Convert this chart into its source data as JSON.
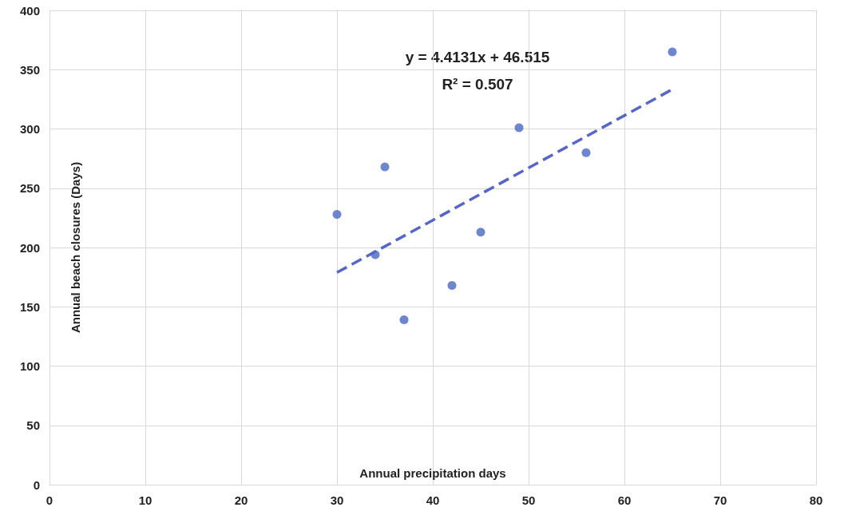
{
  "chart_data": {
    "type": "scatter",
    "xlabel": "Annual precipitation days",
    "ylabel": "Annual beach closures (Days)",
    "annotations": [
      "y = 4.4131x + 46.515",
      "R² = 0.507"
    ],
    "xlim": [
      0,
      80
    ],
    "xticks": [
      0,
      10,
      20,
      30,
      40,
      50,
      60,
      70,
      80
    ],
    "ylim": [
      0,
      400
    ],
    "yticks": [
      0,
      50,
      100,
      150,
      200,
      250,
      300,
      350,
      400
    ],
    "grid": true,
    "marker": "circle",
    "series": [
      {
        "color": "#4a66c4",
        "x": [
          30,
          34,
          35,
          37,
          42,
          45,
          49,
          56,
          65
        ],
        "values": [
          228,
          194,
          268,
          139,
          168,
          213,
          301,
          280,
          365
        ]
      },
      {
        "type": "line",
        "color": "#5566c8",
        "line_style": "dashed",
        "marker": "none",
        "x": [
          30,
          65
        ],
        "values": [
          178.9,
          333.4
        ]
      }
    ]
  }
}
